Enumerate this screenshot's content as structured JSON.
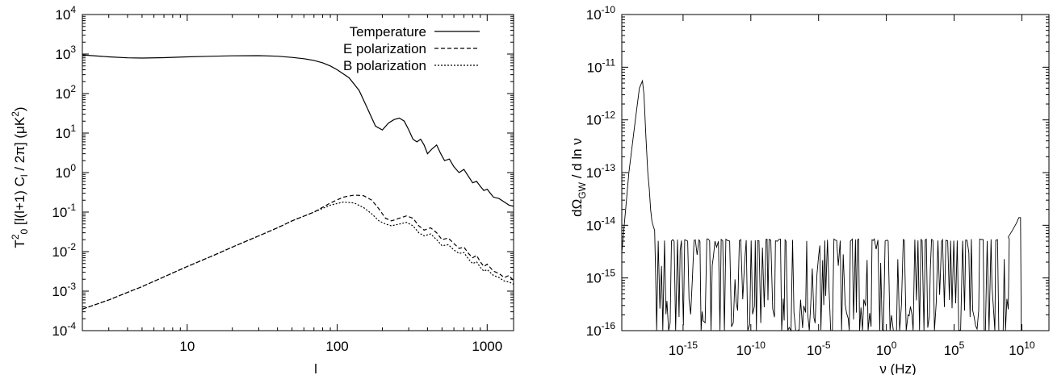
{
  "chart_data": [
    {
      "type": "line",
      "xscale": "log",
      "yscale": "log",
      "xlim": [
        2,
        1500
      ],
      "ylim": [
        0.0001,
        10000
      ],
      "xlabel": "l",
      "ylabel": "T0^2 [l(l+1) C_l / 2π] (μK^2)",
      "xticks": [
        {
          "v": 10,
          "label": "10"
        },
        {
          "v": 100,
          "label": "100"
        },
        {
          "v": 1000,
          "label": "1000"
        }
      ],
      "yticks": [
        {
          "v": 0.0001,
          "base": "10",
          "exp": "-4"
        },
        {
          "v": 0.001,
          "base": "10",
          "exp": "-3"
        },
        {
          "v": 0.01,
          "base": "10",
          "exp": "-2"
        },
        {
          "v": 0.1,
          "base": "10",
          "exp": "-1"
        },
        {
          "v": 1,
          "base": "10",
          "exp": "0"
        },
        {
          "v": 10,
          "base": "10",
          "exp": "1"
        },
        {
          "v": 100,
          "base": "10",
          "exp": "2"
        },
        {
          "v": 1000,
          "base": "10",
          "exp": "3"
        },
        {
          "v": 10000,
          "base": "10",
          "exp": "4"
        }
      ],
      "legend_position": "top-right",
      "series": [
        {
          "name": "Temperature",
          "dash": "solid",
          "points": [
            [
              2,
              950
            ],
            [
              3,
              850
            ],
            [
              4,
              800
            ],
            [
              5,
              790
            ],
            [
              7,
              810
            ],
            [
              10,
              850
            ],
            [
              15,
              880
            ],
            [
              20,
              900
            ],
            [
              30,
              910
            ],
            [
              40,
              880
            ],
            [
              50,
              820
            ],
            [
              60,
              760
            ],
            [
              70,
              690
            ],
            [
              80,
              600
            ],
            [
              90,
              500
            ],
            [
              100,
              400
            ],
            [
              120,
              250
            ],
            [
              140,
              120
            ],
            [
              160,
              40
            ],
            [
              180,
              15
            ],
            [
              200,
              12
            ],
            [
              220,
              18
            ],
            [
              240,
              22
            ],
            [
              260,
              24
            ],
            [
              280,
              20
            ],
            [
              300,
              12
            ],
            [
              320,
              7
            ],
            [
              340,
              6
            ],
            [
              360,
              7
            ],
            [
              380,
              5
            ],
            [
              400,
              3
            ],
            [
              430,
              4
            ],
            [
              460,
              5
            ],
            [
              490,
              3
            ],
            [
              520,
              2
            ],
            [
              560,
              2.2
            ],
            [
              600,
              1.4
            ],
            [
              650,
              1.0
            ],
            [
              700,
              1.2
            ],
            [
              750,
              0.8
            ],
            [
              800,
              0.55
            ],
            [
              850,
              0.6
            ],
            [
              900,
              0.45
            ],
            [
              950,
              0.35
            ],
            [
              1000,
              0.38
            ],
            [
              1050,
              0.3
            ],
            [
              1100,
              0.24
            ],
            [
              1200,
              0.22
            ],
            [
              1300,
              0.18
            ],
            [
              1400,
              0.15
            ],
            [
              1500,
              0.14
            ]
          ]
        },
        {
          "name": "E polarization",
          "dash": "dashed",
          "points": [
            [
              2,
              0.00035
            ],
            [
              3,
              0.0006
            ],
            [
              5,
              0.0013
            ],
            [
              7,
              0.0023
            ],
            [
              10,
              0.0042
            ],
            [
              15,
              0.008
            ],
            [
              20,
              0.013
            ],
            [
              30,
              0.025
            ],
            [
              40,
              0.04
            ],
            [
              50,
              0.06
            ],
            [
              70,
              0.1
            ],
            [
              90,
              0.17
            ],
            [
              110,
              0.24
            ],
            [
              130,
              0.27
            ],
            [
              150,
              0.26
            ],
            [
              170,
              0.2
            ],
            [
              190,
              0.12
            ],
            [
              210,
              0.07
            ],
            [
              230,
              0.06
            ],
            [
              260,
              0.07
            ],
            [
              290,
              0.08
            ],
            [
              320,
              0.07
            ],
            [
              350,
              0.045
            ],
            [
              380,
              0.035
            ],
            [
              420,
              0.04
            ],
            [
              460,
              0.03
            ],
            [
              500,
              0.02
            ],
            [
              550,
              0.022
            ],
            [
              600,
              0.016
            ],
            [
              650,
              0.012
            ],
            [
              700,
              0.013
            ],
            [
              750,
              0.009
            ],
            [
              800,
              0.007
            ],
            [
              850,
              0.008
            ],
            [
              900,
              0.0055
            ],
            [
              950,
              0.0042
            ],
            [
              1000,
              0.0048
            ],
            [
              1100,
              0.0032
            ],
            [
              1200,
              0.0028
            ],
            [
              1300,
              0.0022
            ],
            [
              1400,
              0.0025
            ],
            [
              1500,
              0.0018
            ]
          ]
        },
        {
          "name": "B polarization",
          "dash": "dotted",
          "points": [
            [
              2,
              0.00035
            ],
            [
              3,
              0.0006
            ],
            [
              5,
              0.0013
            ],
            [
              7,
              0.0023
            ],
            [
              10,
              0.0042
            ],
            [
              15,
              0.008
            ],
            [
              20,
              0.013
            ],
            [
              30,
              0.025
            ],
            [
              40,
              0.04
            ],
            [
              50,
              0.06
            ],
            [
              70,
              0.1
            ],
            [
              90,
              0.15
            ],
            [
              110,
              0.18
            ],
            [
              130,
              0.17
            ],
            [
              150,
              0.13
            ],
            [
              170,
              0.09
            ],
            [
              190,
              0.06
            ],
            [
              210,
              0.05
            ],
            [
              230,
              0.045
            ],
            [
              260,
              0.05
            ],
            [
              290,
              0.055
            ],
            [
              320,
              0.045
            ],
            [
              350,
              0.03
            ],
            [
              380,
              0.025
            ],
            [
              420,
              0.028
            ],
            [
              460,
              0.02
            ],
            [
              500,
              0.014
            ],
            [
              550,
              0.015
            ],
            [
              600,
              0.011
            ],
            [
              650,
              0.009
            ],
            [
              700,
              0.0095
            ],
            [
              750,
              0.0065
            ],
            [
              800,
              0.005
            ],
            [
              850,
              0.0055
            ],
            [
              900,
              0.004
            ],
            [
              950,
              0.0032
            ],
            [
              1000,
              0.0035
            ],
            [
              1100,
              0.0025
            ],
            [
              1200,
              0.0022
            ],
            [
              1300,
              0.0018
            ],
            [
              1400,
              0.0017
            ],
            [
              1500,
              0.0015
            ]
          ]
        }
      ]
    },
    {
      "type": "line",
      "xscale": "log",
      "yscale": "log",
      "xlim": [
        3e-20,
        1000000000000.0
      ],
      "ylim": [
        1e-16,
        1e-10
      ],
      "xlabel": "ν (Hz)",
      "ylabel": "dΩGW / d ln ν",
      "xticks": [
        {
          "v": 1e-15,
          "base": "10",
          "exp": "-15"
        },
        {
          "v": 1e-10,
          "base": "10",
          "exp": "-10"
        },
        {
          "v": 1e-05,
          "base": "10",
          "exp": "-5"
        },
        {
          "v": 1,
          "base": "10",
          "exp": "0"
        },
        {
          "v": 100000.0,
          "base": "10",
          "exp": "5"
        },
        {
          "v": 10000000000.0,
          "base": "10",
          "exp": "10"
        }
      ],
      "yticks": [
        {
          "v": 1e-16,
          "base": "10",
          "exp": "-16"
        },
        {
          "v": 1e-15,
          "base": "10",
          "exp": "-15"
        },
        {
          "v": 1e-14,
          "base": "10",
          "exp": "-14"
        },
        {
          "v": 1e-13,
          "base": "10",
          "exp": "-13"
        },
        {
          "v": 1e-12,
          "base": "10",
          "exp": "-12"
        },
        {
          "v": 1e-11,
          "base": "10",
          "exp": "-11"
        },
        {
          "v": 1e-10,
          "base": "10",
          "exp": "-10"
        }
      ],
      "series": [
        {
          "dash": "solid",
          "peak_points": [
            [
              3e-20,
              3e-15
            ],
            [
              1e-19,
              1e-13
            ],
            [
              3e-19,
              1e-12
            ],
            [
              6e-19,
              4e-12
            ],
            [
              1e-18,
              5.5e-12
            ],
            [
              1.3e-18,
              3e-12
            ],
            [
              1.8e-18,
              5e-13
            ],
            [
              2.5e-18,
              1e-13
            ],
            [
              3.2e-18,
              5e-14
            ],
            [
              4e-18,
              2e-14
            ],
            [
              5e-18,
              1.2e-14
            ],
            [
              6e-18,
              1e-14
            ],
            [
              8e-18,
              8e-15
            ]
          ],
          "plateau": {
            "from": 8e-18,
            "to": 1000000000.0,
            "level": 5.5e-15,
            "floor": 1e-16
          },
          "tail_points": [
            [
              1000000000.0,
              6e-15
            ],
            [
              2000000000.0,
              8e-15
            ],
            [
              4000000000.0,
              1.1e-14
            ],
            [
              6000000000.0,
              1.4e-14
            ],
            [
              8000000000.0,
              1.4e-14
            ],
            [
              9000000000.0,
              1e-16
            ]
          ]
        }
      ]
    }
  ]
}
